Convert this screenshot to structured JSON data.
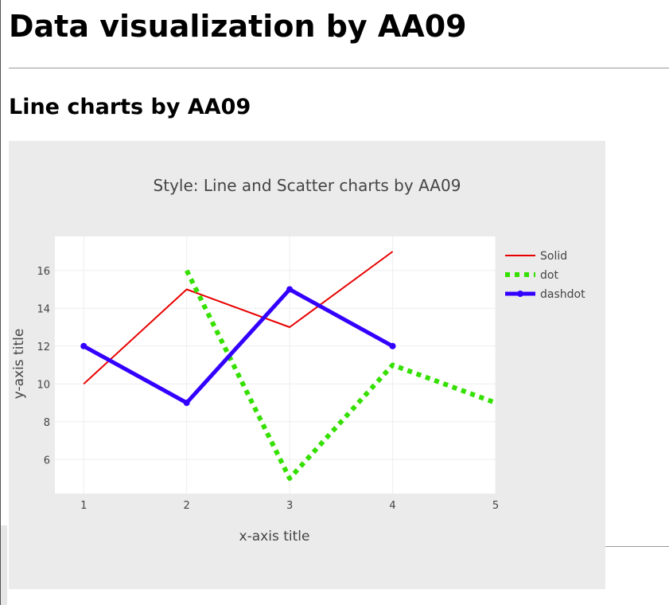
{
  "page": {
    "title": "Data visualization by AA09",
    "section_title": "Line charts by AA09"
  },
  "chart_data": {
    "type": "line",
    "title": "Style: Line and Scatter charts by AA09",
    "xlabel": "x-axis title",
    "ylabel": "y-axis title",
    "xlim": [
      0.72,
      5.0
    ],
    "ylim": [
      4.2,
      17.8
    ],
    "x_ticks": [
      1,
      2,
      3,
      4,
      5
    ],
    "y_ticks": [
      6,
      8,
      10,
      12,
      14,
      16
    ],
    "grid": true,
    "legend_position": "right",
    "plot_background": "#ffffff",
    "paper_background": "#ebebeb",
    "series": [
      {
        "name": "Solid",
        "x": [
          1,
          2,
          3,
          4
        ],
        "y": [
          10,
          15,
          13,
          17
        ],
        "color": "#e80000",
        "dash": "solid",
        "width": 2,
        "markers": false
      },
      {
        "name": "dot",
        "x": [
          2,
          3,
          4,
          5
        ],
        "y": [
          16,
          5,
          11,
          9
        ],
        "color": "#33e000",
        "dash": "dot",
        "width": 6,
        "markers": false
      },
      {
        "name": "dashdot",
        "x": [
          1,
          2,
          3,
          4
        ],
        "y": [
          12,
          9,
          15,
          12
        ],
        "color": "#3300ff",
        "dash": "solid",
        "width": 5,
        "markers": true
      }
    ]
  }
}
